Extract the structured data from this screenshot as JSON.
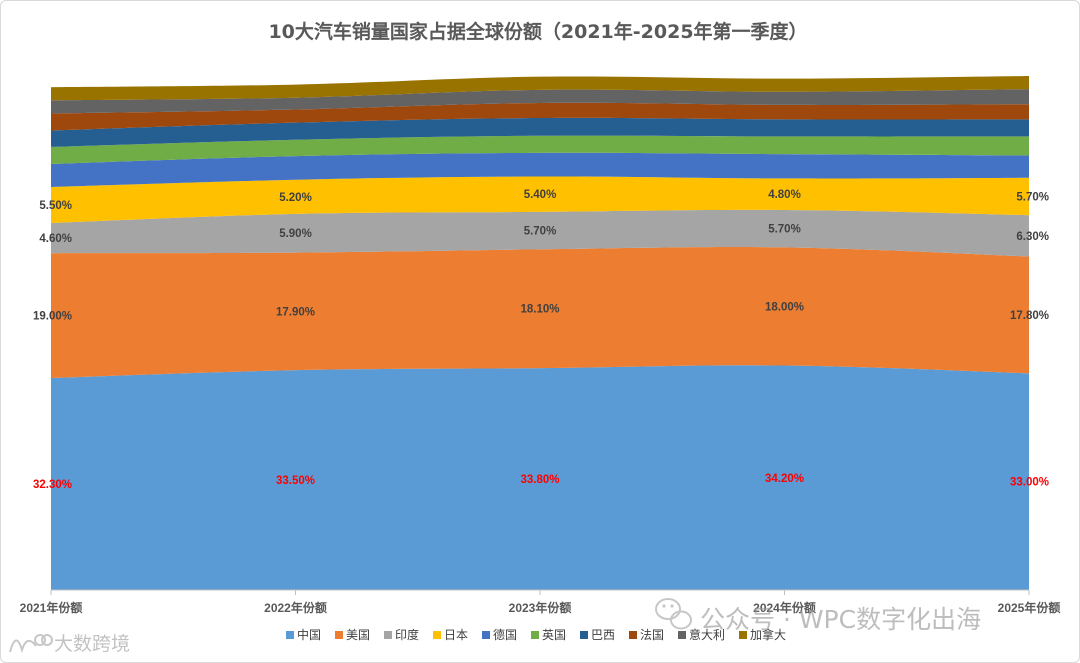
{
  "chart_data": {
    "type": "area",
    "stacked": true,
    "title": "10大汽车销量国家占据全球份额（2021年-2025年第一季度）",
    "categories": [
      "2021年份额",
      "2022年份额",
      "2023年份额",
      "2024年份额",
      "2025年份额"
    ],
    "series": [
      {
        "name": "中国",
        "color": "#5b9bd5",
        "values": [
          32.3,
          33.5,
          33.8,
          34.2,
          33.0
        ],
        "labels": [
          "32.30%",
          "33.50%",
          "33.80%",
          "34.20%",
          "33.00%"
        ],
        "label_color": "#ff0000"
      },
      {
        "name": "美国",
        "color": "#ed7d31",
        "values": [
          19.0,
          17.9,
          18.1,
          18.0,
          17.8
        ],
        "labels": [
          "19.00%",
          "17.90%",
          "18.10%",
          "18.00%",
          "17.80%"
        ],
        "label_color": "#404040"
      },
      {
        "name": "印度",
        "color": "#a5a5a5",
        "values": [
          4.6,
          5.9,
          5.7,
          5.7,
          6.3
        ],
        "labels": [
          "4.60%",
          "5.90%",
          "5.70%",
          "5.70%",
          "6.30%"
        ],
        "label_color": "#404040"
      },
      {
        "name": "日本",
        "color": "#ffc000",
        "values": [
          5.5,
          5.2,
          5.4,
          4.8,
          5.7
        ],
        "labels": [
          "5.50%",
          "5.20%",
          "5.40%",
          "4.80%",
          "5.70%"
        ],
        "label_color": "#404040"
      },
      {
        "name": "德国",
        "color": "#4472c4",
        "values": [
          3.5,
          3.6,
          3.6,
          3.7,
          3.4
        ]
      },
      {
        "name": "英国",
        "color": "#70ad47",
        "values": [
          2.6,
          2.5,
          2.6,
          2.7,
          2.9
        ]
      },
      {
        "name": "巴西",
        "color": "#255e91",
        "values": [
          2.5,
          2.6,
          2.7,
          2.6,
          2.6
        ]
      },
      {
        "name": "法国",
        "color": "#9e480e",
        "values": [
          2.6,
          2.0,
          2.3,
          2.2,
          2.3
        ]
      },
      {
        "name": "意大利",
        "color": "#636363",
        "values": [
          2.0,
          1.8,
          2.0,
          2.0,
          2.3
        ]
      },
      {
        "name": "加拿大",
        "color": "#997300",
        "values": [
          2.0,
          2.0,
          2.0,
          2.0,
          2.0
        ]
      }
    ],
    "ylim": [
      0,
      78
    ],
    "xlabel": "",
    "ylabel": "",
    "legend_position": "bottom"
  },
  "watermarks": {
    "wechat": "公众号 · WPC数字化出海",
    "corner": "大数跨境"
  }
}
